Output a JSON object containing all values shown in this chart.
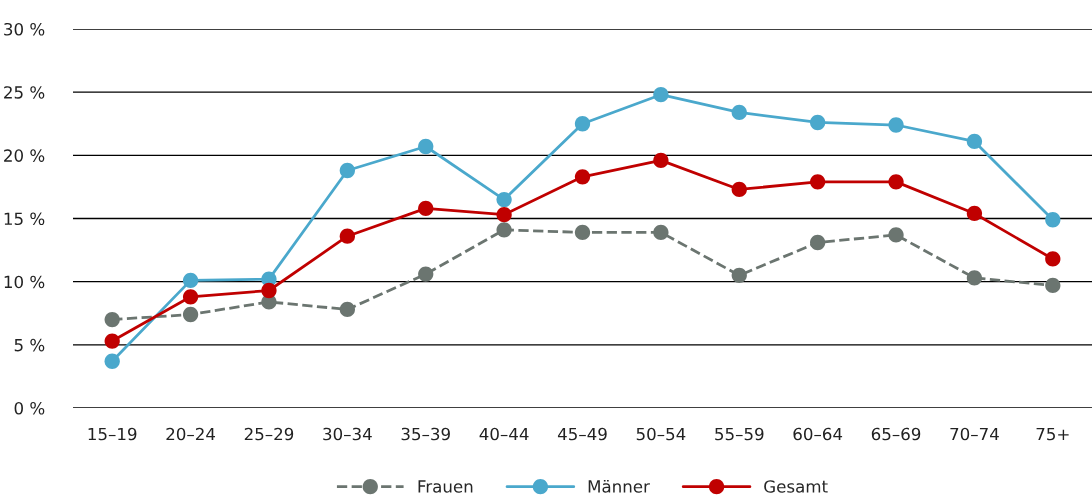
{
  "chart_data": {
    "type": "line",
    "categories": [
      "15–19",
      "20–24",
      "25–29",
      "30–34",
      "35–39",
      "40–44",
      "45–49",
      "50–54",
      "55–59",
      "60–64",
      "65–69",
      "70–74",
      "75+"
    ],
    "series": [
      {
        "name": "Frauen",
        "color": "#6b7570",
        "line_style": "dashed",
        "values": [
          7.0,
          7.4,
          8.4,
          7.8,
          10.6,
          14.1,
          13.9,
          13.9,
          10.5,
          13.1,
          13.7,
          10.3,
          9.7
        ]
      },
      {
        "name": "Männer",
        "color": "#4aa8cc",
        "line_style": "solid",
        "values": [
          3.7,
          10.1,
          10.2,
          18.8,
          20.7,
          16.5,
          22.5,
          24.8,
          23.4,
          22.6,
          22.4,
          21.1,
          14.9
        ]
      },
      {
        "name": "Gesamt",
        "color": "#c00000",
        "line_style": "solid",
        "values": [
          5.3,
          8.8,
          9.3,
          13.6,
          15.8,
          15.3,
          18.3,
          19.6,
          17.3,
          17.9,
          17.9,
          15.4,
          11.8
        ]
      }
    ],
    "ylim": [
      0,
      30
    ],
    "yticks": [
      {
        "value": 0,
        "label": "0 %"
      },
      {
        "value": 5,
        "label": "5 %"
      },
      {
        "value": 10,
        "label": "10 %"
      },
      {
        "value": 15,
        "label": "15 %"
      },
      {
        "value": 20,
        "label": "20 %"
      },
      {
        "value": 25,
        "label": "25 %"
      },
      {
        "value": 30,
        "label": "30 %"
      }
    ],
    "grid": "y",
    "legend": "bottom",
    "marker": "circle"
  }
}
